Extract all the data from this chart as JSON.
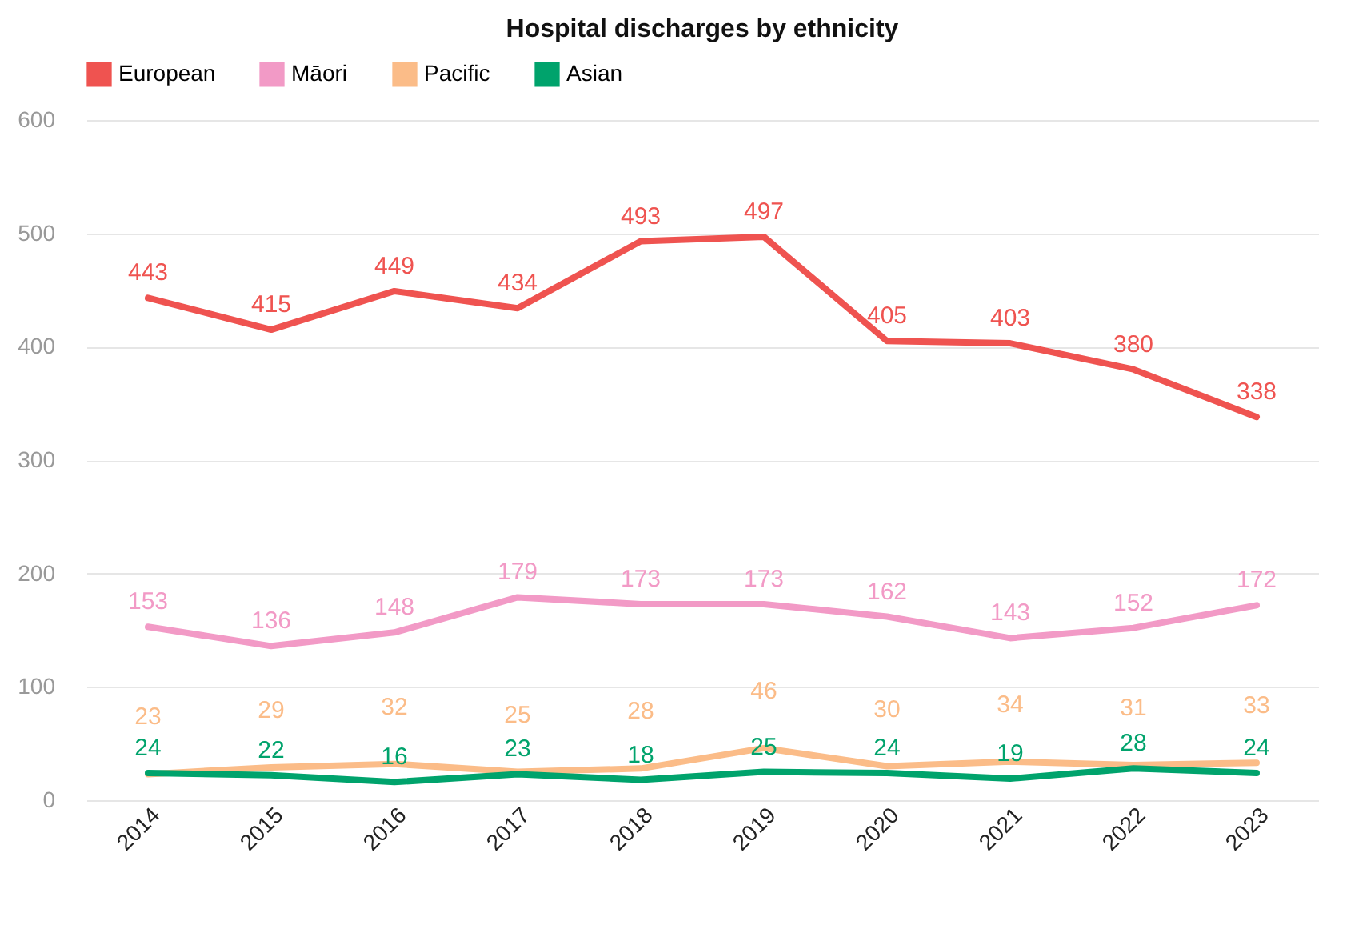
{
  "chart_data": {
    "type": "line",
    "title": "Hospital discharges by ethnicity",
    "categories": [
      "2014",
      "2015",
      "2016",
      "2017",
      "2018",
      "2019",
      "2020",
      "2021",
      "2022",
      "2023"
    ],
    "series": [
      {
        "name": "European",
        "color": "#ef5350",
        "values": [
          443,
          415,
          449,
          434,
          493,
          497,
          405,
          403,
          380,
          338
        ]
      },
      {
        "name": "Māori",
        "color": "#f29ac6",
        "values": [
          153,
          136,
          148,
          179,
          173,
          173,
          162,
          143,
          152,
          172
        ]
      },
      {
        "name": "Pacific",
        "color": "#fbbc88",
        "values": [
          23,
          29,
          32,
          25,
          28,
          46,
          30,
          34,
          31,
          33
        ]
      },
      {
        "name": "Asian",
        "color": "#00a36c",
        "values": [
          24,
          22,
          16,
          23,
          18,
          25,
          24,
          19,
          28,
          24
        ]
      }
    ],
    "ylim": [
      0,
      600
    ],
    "yticks": [
      0,
      100,
      200,
      300,
      400,
      500,
      600
    ],
    "grid": "y",
    "legend": "top",
    "data_labels": true,
    "marker": "none",
    "line_style": "solid"
  }
}
